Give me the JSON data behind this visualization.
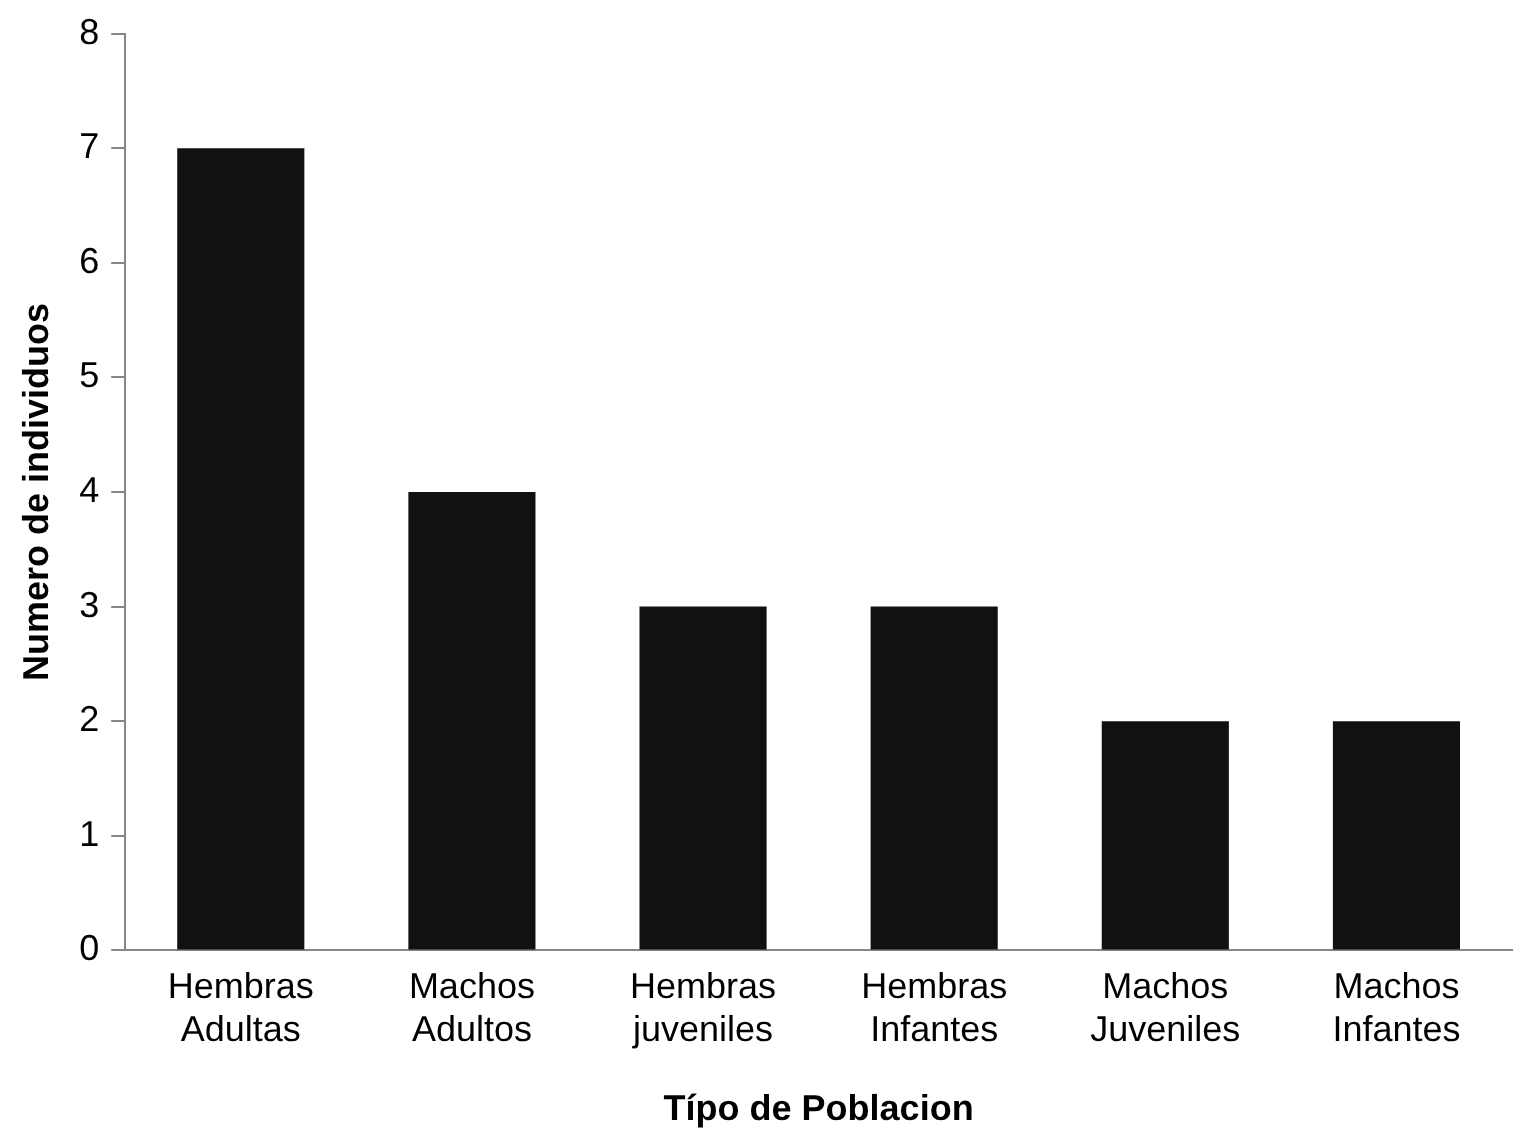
{
  "chart_data": {
    "type": "bar",
    "xlabel": "Típo de Poblacion",
    "ylabel": "Numero de individuos",
    "categories": [
      "Hembras Adultas",
      "Machos Adultos",
      "Hembras juveniles",
      "Hembras Infantes",
      "Machos Juveniles",
      "Machos Infantes"
    ],
    "values": [
      7,
      4,
      3,
      3,
      2,
      2
    ],
    "color": "#111111",
    "ylim": [
      0,
      8
    ],
    "yticks": [
      0,
      1,
      2,
      3,
      4,
      5,
      6,
      7,
      8
    ],
    "grid": false,
    "legend": false
  }
}
